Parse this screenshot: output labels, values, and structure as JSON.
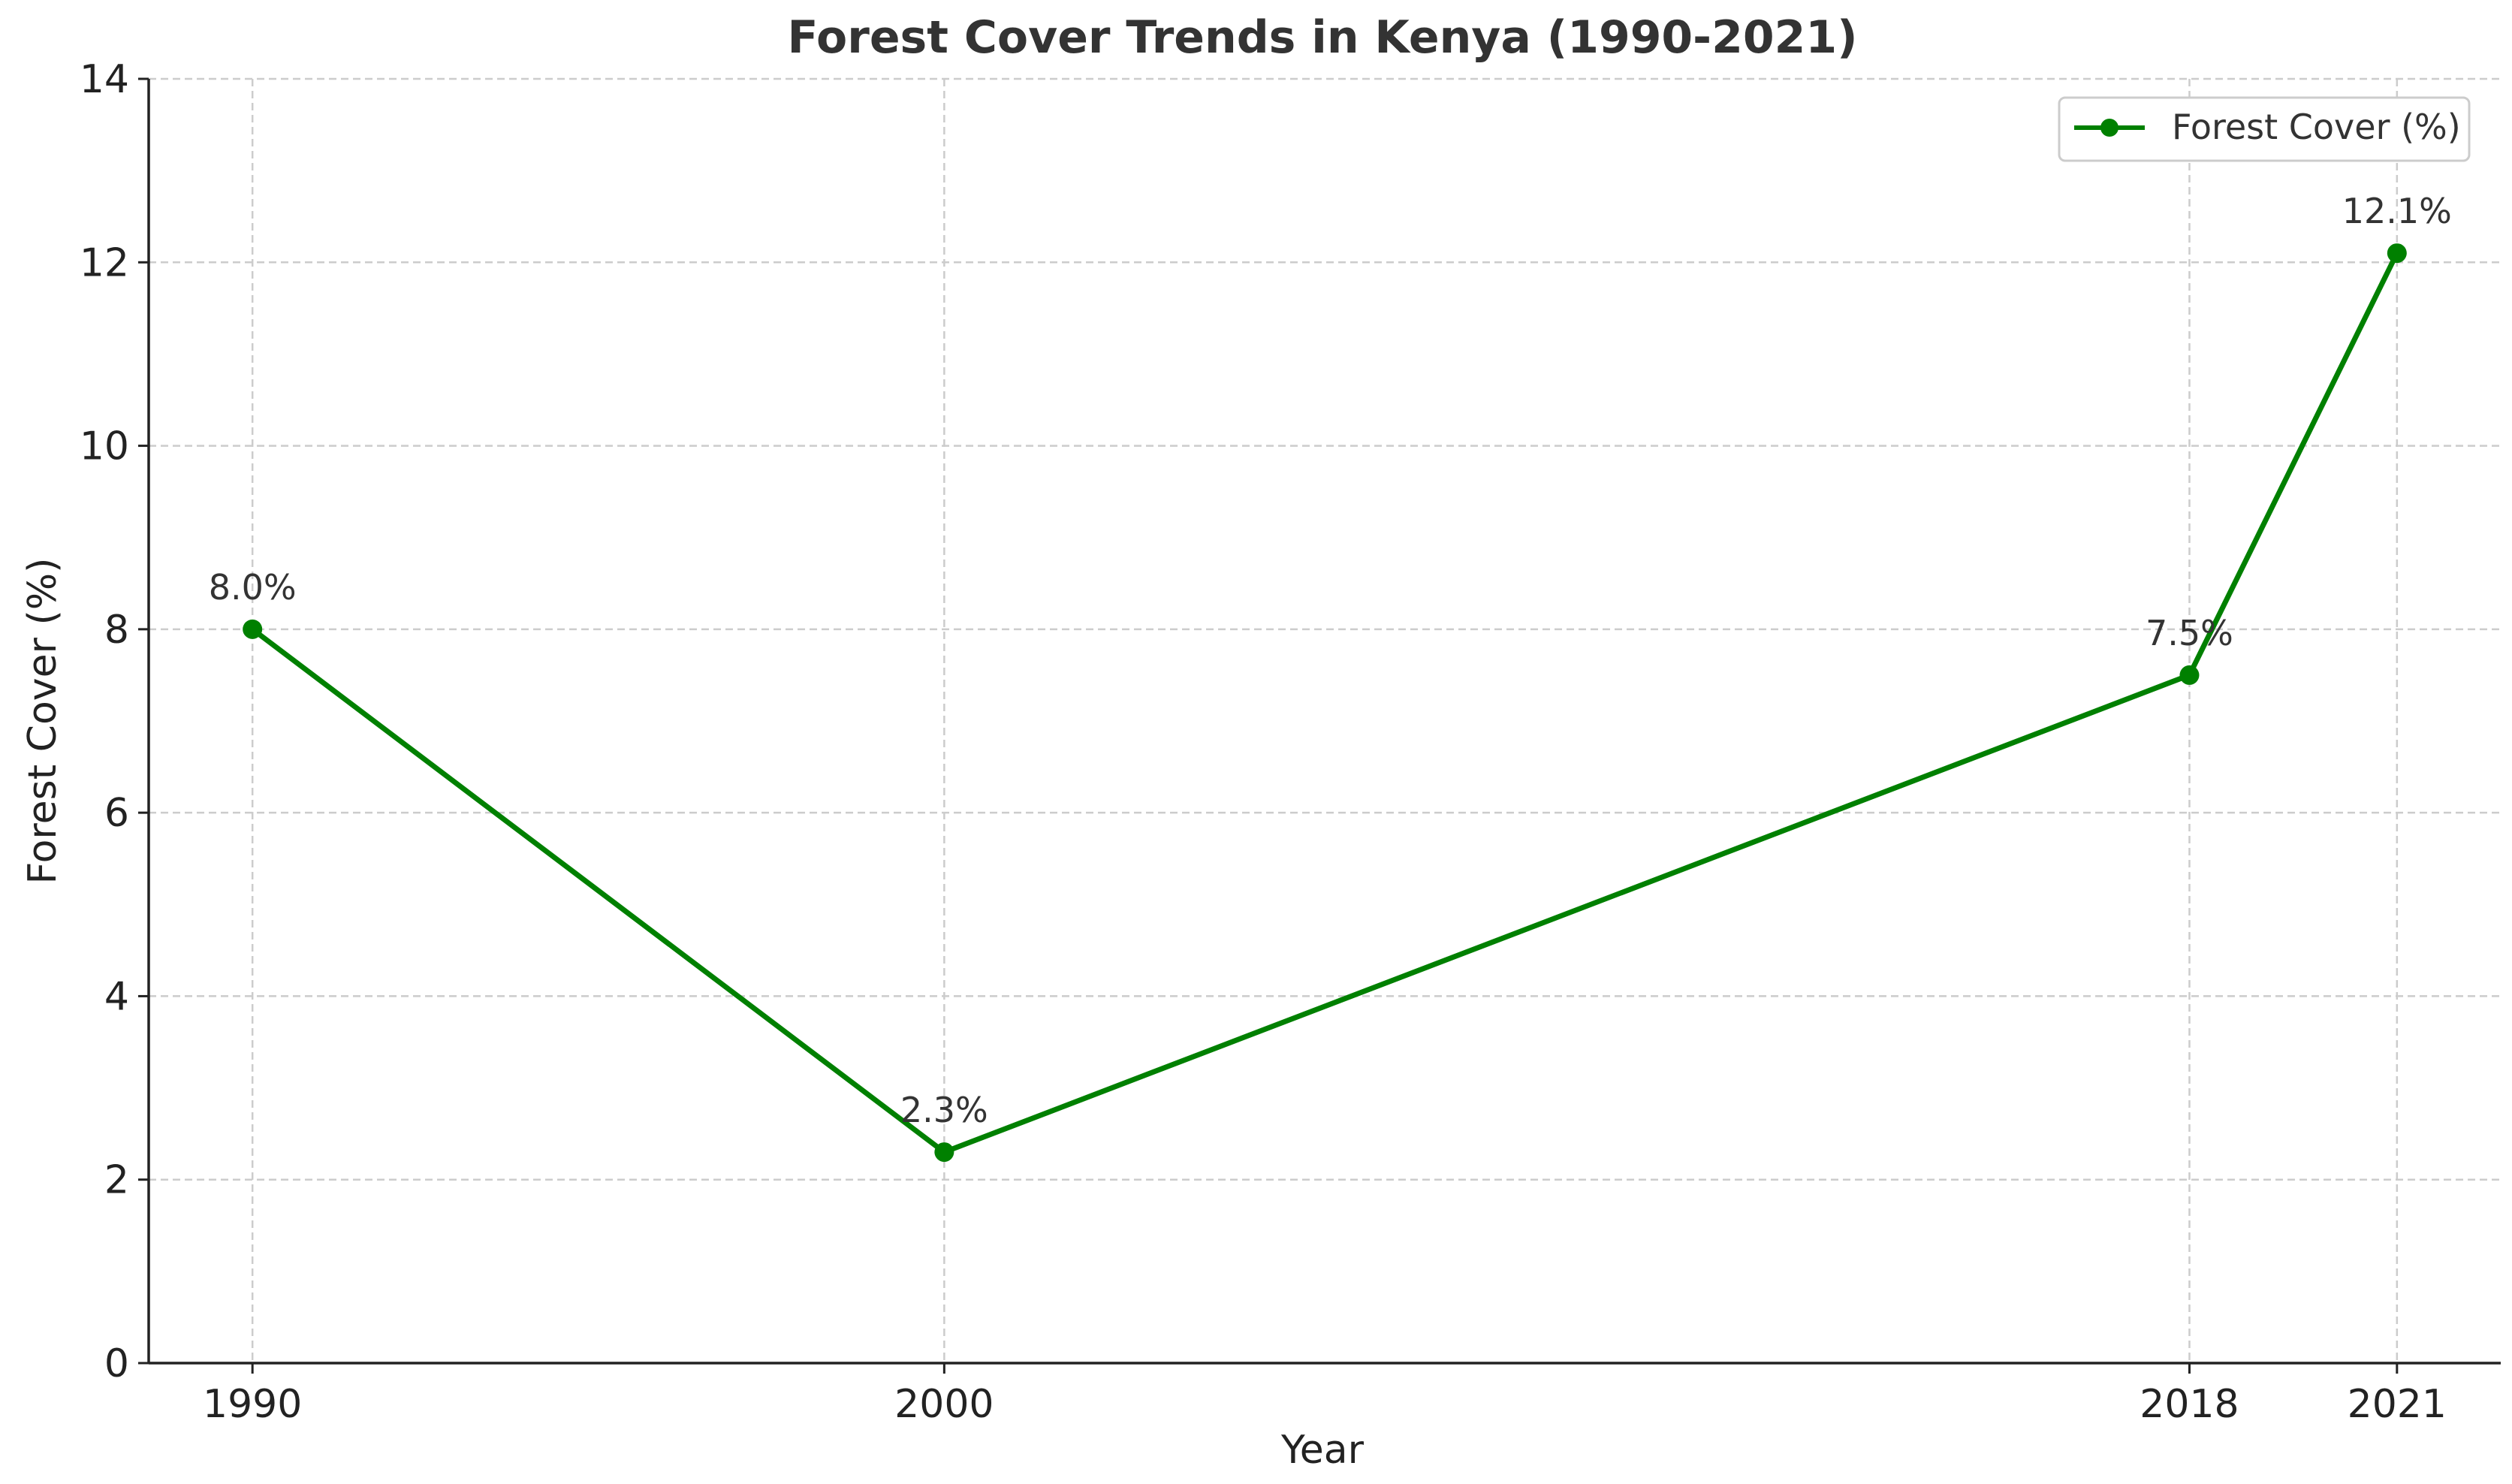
{
  "chart_data": {
    "type": "line",
    "title": "Forest Cover Trends in Kenya (1990-2021)",
    "xlabel": "Year",
    "ylabel": "Forest Cover (%)",
    "x": [
      1990,
      2000,
      2018,
      2021
    ],
    "x_tick_labels": [
      "1990",
      "2000",
      "2018",
      "2021"
    ],
    "xlim": [
      1988.5,
      2022.5
    ],
    "ylim": [
      0,
      14
    ],
    "y_ticks": [
      0,
      2,
      4,
      6,
      8,
      10,
      12,
      14
    ],
    "grid": true,
    "legend_position": "top-right",
    "series": [
      {
        "name": "Forest Cover (%)",
        "values": [
          8.0,
          2.3,
          7.5,
          12.1
        ],
        "data_labels": [
          "8.0%",
          "2.3%",
          "7.5%",
          "12.1%"
        ],
        "color": "#008000"
      }
    ]
  }
}
